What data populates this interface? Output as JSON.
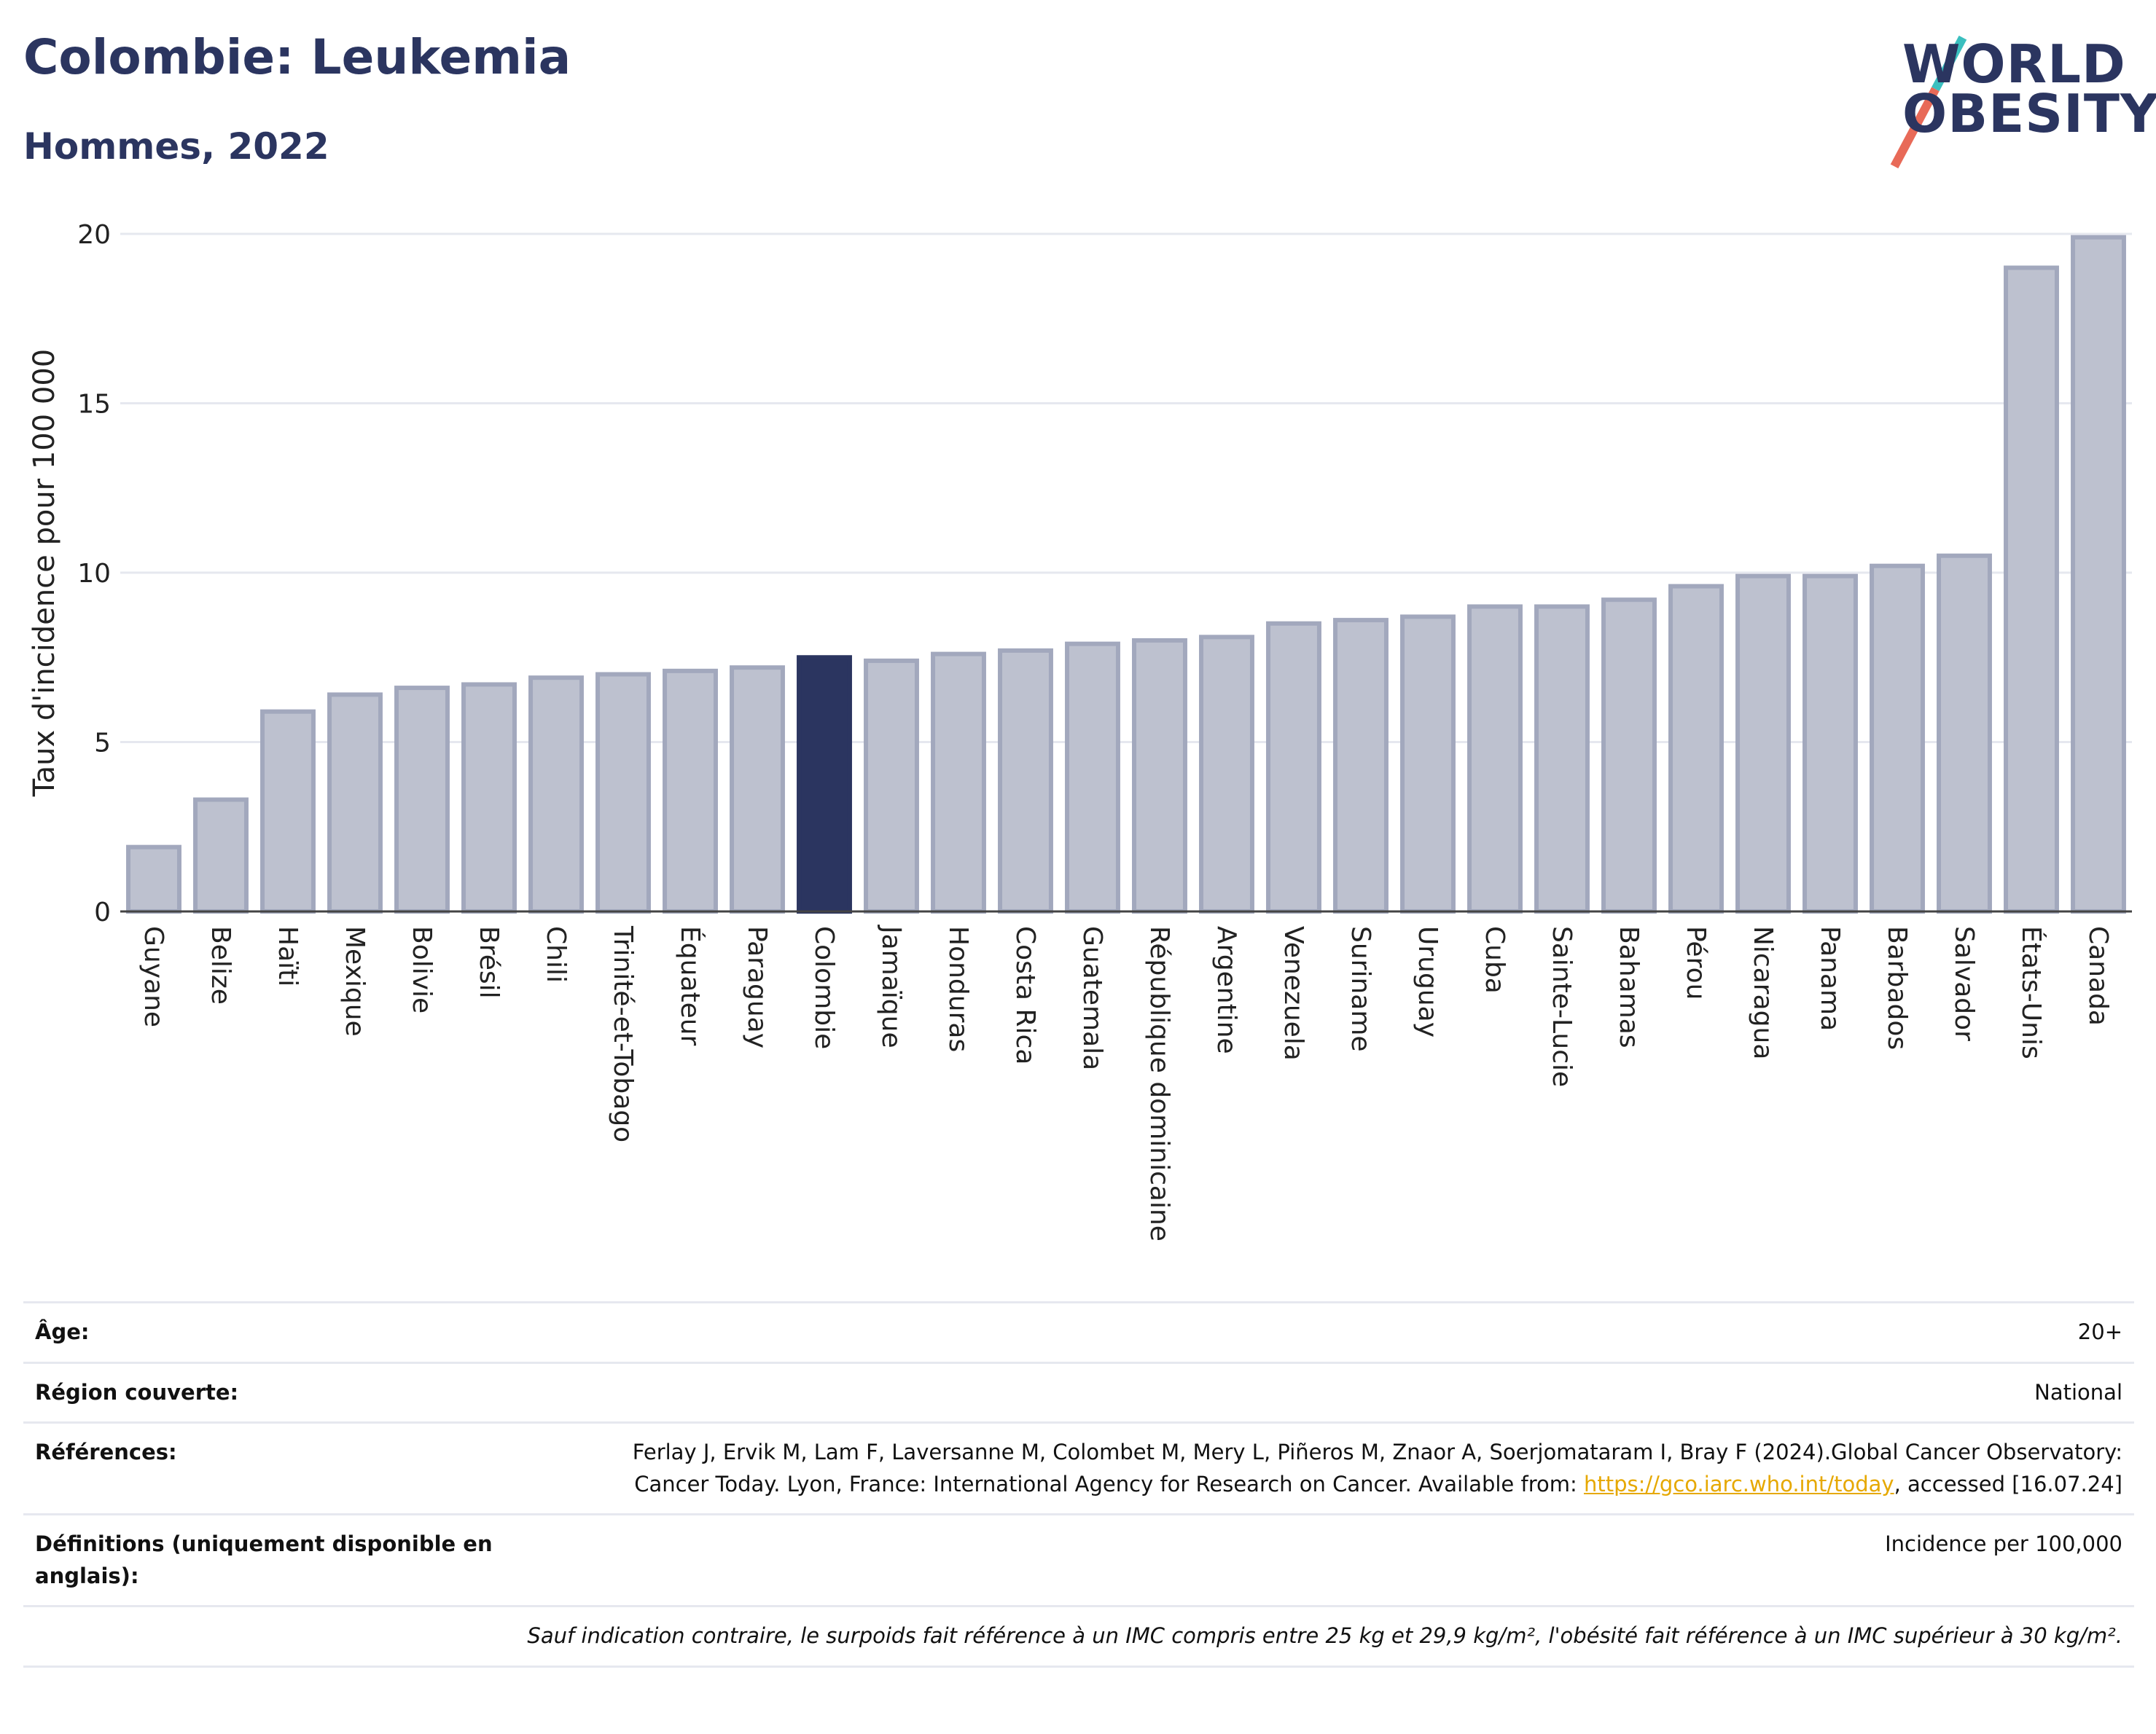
{
  "header": {
    "title": "Colombie: Leukemia",
    "subtitle": "Hommes, 2022"
  },
  "logo": {
    "line1": "WORLD",
    "line2": "OBESITY"
  },
  "colors": {
    "highlight": "#2b3560",
    "bar": "#bdc1cf",
    "bar_edge": "#a2a8bd",
    "grid": "#e6e8ef"
  },
  "chart_data": {
    "type": "bar",
    "ylabel": "Taux d'incidence pour 100 000",
    "xlabel": "",
    "ylim": [
      0,
      20
    ],
    "yticks": [
      0,
      5,
      10,
      15,
      20
    ],
    "grid": true,
    "highlight": "Colombie",
    "categories": [
      "Guyane",
      "Belize",
      "Haïti",
      "Mexique",
      "Bolivie",
      "Brésil",
      "Chili",
      "Trinité-et-Tobago",
      "Équateur",
      "Paraguay",
      "Colombie",
      "Jamaïque",
      "Honduras",
      "Costa Rica",
      "Guatemala",
      "République dominicaine",
      "Argentine",
      "Venezuela",
      "Suriname",
      "Uruguay",
      "Cuba",
      "Sainte-Lucie",
      "Bahamas",
      "Pérou",
      "Nicaragua",
      "Panama",
      "Barbados",
      "Salvador",
      "États-Unis",
      "Canada"
    ],
    "values": [
      1.9,
      3.3,
      5.9,
      6.4,
      6.6,
      6.7,
      6.9,
      7.0,
      7.1,
      7.2,
      7.5,
      7.4,
      7.6,
      7.7,
      7.9,
      8.0,
      8.1,
      8.5,
      8.6,
      8.7,
      9.0,
      9.0,
      9.2,
      9.6,
      9.9,
      9.9,
      10.2,
      10.5,
      19.0,
      19.9
    ]
  },
  "info": {
    "age_label": "Âge:",
    "age_value": "20+",
    "region_label": "Région couverte:",
    "region_value": "National",
    "references_label": "Références:",
    "references_text1": "Ferlay J, Ervik M, Lam F, Laversanne M, Colombet M, Mery L, Piñeros M, Znaor A, Soerjomataram I, Bray F (2024).Global Cancer Observatory: Cancer Today. Lyon, France: International Agency for Research on Cancer. Available from: ",
    "references_link": "https://gco.iarc.who.int/today",
    "references_text2": ", accessed [16.07.24]",
    "definitions_label": "Définitions (uniquement disponible en anglais):",
    "definitions_value": "Incidence per 100,000",
    "note": "Sauf indication contraire, le surpoids fait référence à un IMC compris entre 25 kg et 29,9 kg/m², l'obésité fait référence à un IMC supérieur à 30 kg/m²."
  }
}
